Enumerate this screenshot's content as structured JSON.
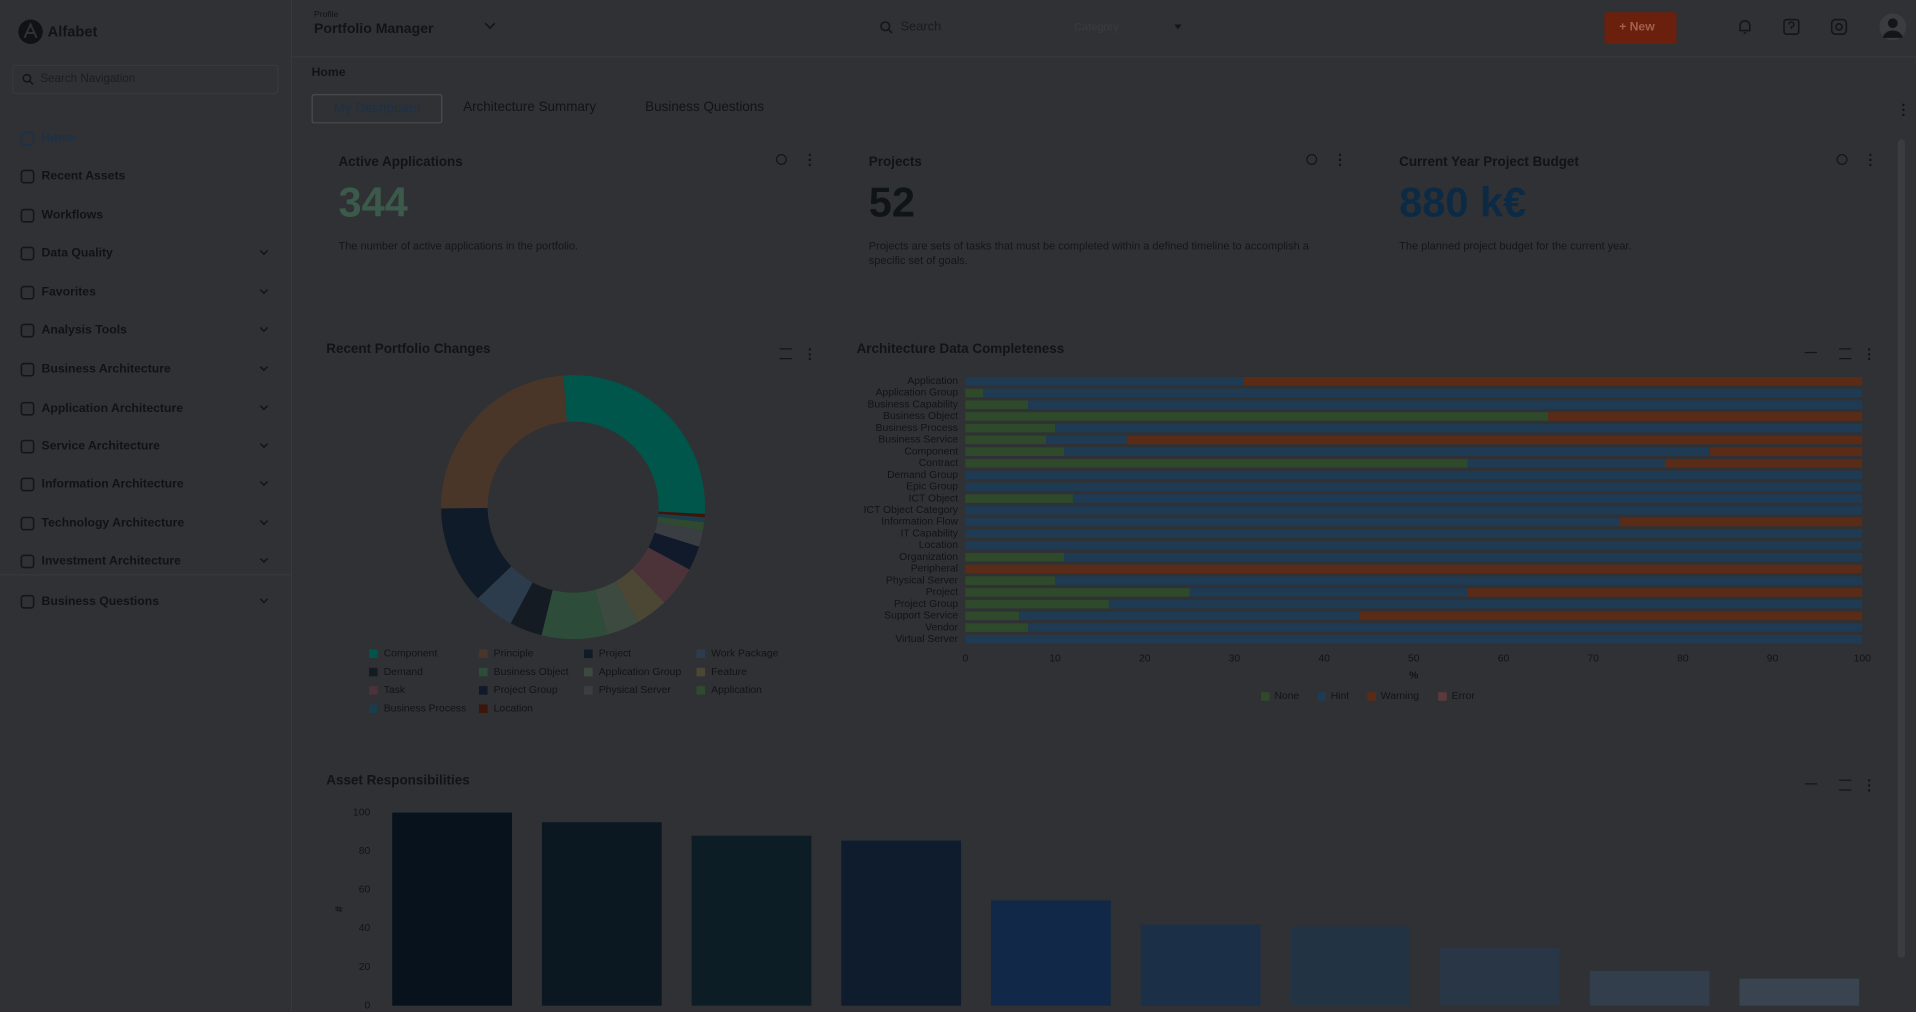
{
  "sidebar": {
    "brand": "Alfabet",
    "search_placeholder": "Search Navigation",
    "items": [
      "Home",
      "Recent Assets",
      "Workflows",
      "Data Quality",
      "Favorites",
      "Analysis Tools",
      "Business Architecture",
      "Application Architecture",
      "Service Architecture",
      "Information Architecture",
      "Technology Architecture",
      "Investment Architecture",
      "Business Questions"
    ]
  },
  "header": {
    "profile_label": "Profile",
    "profile": "Portfolio Manager",
    "search_placeholder": "Search",
    "category_placeholder": "Category",
    "new_button": "New"
  },
  "breadcrumb": "Home",
  "tabs": [
    "My Dashboard",
    "Architecture Summary",
    "Business Questions"
  ],
  "kpis": [
    {
      "title": "Active Applications",
      "value": "344",
      "description": "The number of active applications in the portfolio.",
      "color": "#3c5a4b"
    },
    {
      "title": "Projects",
      "value": "52",
      "description": "Projects are sets of tasks that must be completed within a defined timeline to accomplish a specific set of goals.",
      "color": "#0f1418"
    },
    {
      "title": "Current Year Project Budget",
      "value": "880 k€",
      "description": "The planned project budget for the current year.",
      "color": "#0d2a45"
    }
  ],
  "charts": [
    {
      "type": "donut",
      "title": "Recent Portfolio Changes",
      "categories": [
        "Component",
        "Principle",
        "Project",
        "Work Package",
        "Demand",
        "Business Object",
        "Application Group",
        "Feature",
        "Task",
        "Project Group",
        "Physical Server",
        "Application",
        "Business Process",
        "Location"
      ],
      "values": [
        27,
        24,
        12,
        5,
        4,
        8,
        4,
        4,
        5,
        3,
        2,
        1,
        0.6,
        0.4
      ],
      "colors": [
        "#00564a",
        "#4a3628",
        "#0f1b28",
        "#2d3c4c",
        "#151b22",
        "#2e4c3a",
        "#3c4a40",
        "#4c4635",
        "#4c3339",
        "#101a2a",
        "#3a3e42",
        "#2f4a30",
        "#1b3c4c",
        "#3d160a"
      ]
    },
    {
      "type": "bar",
      "orientation": "horizontal",
      "stacked": true,
      "title": "Architecture Data Completeness",
      "categories": [
        "Application",
        "Application Group",
        "Business Capability",
        "Business Object",
        "Business Process",
        "Business Service",
        "Component",
        "Contract",
        "Demand Group",
        "Epic Group",
        "ICT Object",
        "ICT Object Category",
        "Information Flow",
        "IT Capability",
        "Location",
        "Organization",
        "Peripheral",
        "Physical Server",
        "Project",
        "Project Group",
        "Support Service",
        "Vendor",
        "Virtual Server"
      ],
      "series": [
        {
          "name": "None",
          "color": "#2e4a2b",
          "values": [
            0,
            2,
            7,
            65,
            10,
            9,
            11,
            56,
            0,
            0,
            12,
            0,
            0,
            0,
            0,
            11,
            0,
            10,
            25,
            16,
            6,
            7,
            0
          ]
        },
        {
          "name": "Hint",
          "color": "#1f3a53",
          "values": [
            31,
            98,
            93,
            0,
            90,
            9,
            72,
            22,
            100,
            100,
            88,
            100,
            73,
            100,
            100,
            89,
            0,
            90,
            31,
            84,
            38,
            93,
            100
          ]
        },
        {
          "name": "Warning",
          "color": "#5a2c17",
          "values": [
            69,
            0,
            0,
            35,
            0,
            82,
            17,
            22,
            0,
            0,
            0,
            0,
            27,
            0,
            0,
            0,
            100,
            0,
            44,
            0,
            56,
            0,
            0
          ]
        },
        {
          "name": "Error",
          "color": "#5a3a3c",
          "values": [
            0,
            0,
            0,
            0,
            0,
            0,
            0,
            0,
            0,
            0,
            0,
            0,
            0,
            0,
            0,
            0,
            0,
            0,
            0,
            0,
            0,
            0,
            0
          ]
        }
      ],
      "xlim": [
        0,
        100
      ],
      "xticks": [
        0,
        10,
        20,
        30,
        40,
        50,
        60,
        70,
        80,
        90,
        100
      ],
      "x_label": "%"
    },
    {
      "type": "column",
      "title": "Asset Responsibilities",
      "values": [
        100,
        95,
        88,
        85.5,
        54.5,
        42,
        41,
        30,
        18,
        14
      ],
      "colors": [
        "#07121c",
        "#0b1822",
        "#0c1d25",
        "#0e1c2e",
        "#112848",
        "#1b2f46",
        "#223444",
        "#283646",
        "#333e4c",
        "#3a4450"
      ],
      "ylim": [
        0,
        100
      ],
      "yticks": [
        0,
        20,
        40,
        60,
        80,
        100
      ],
      "y_label": "#"
    }
  ]
}
